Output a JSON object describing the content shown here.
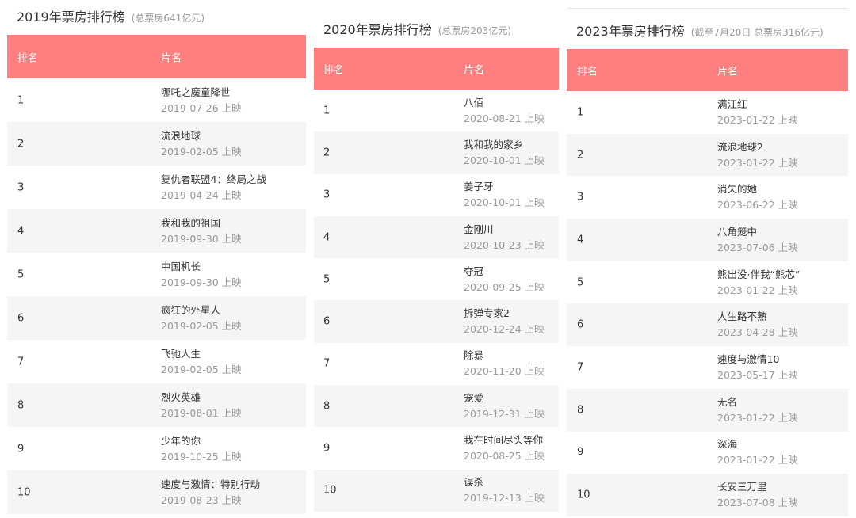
{
  "header_color": "#ff7f7f",
  "columns": {
    "rank": "排名",
    "film": "片名"
  },
  "release_suffix": "上映",
  "panels": [
    {
      "title": "2019年票房排行榜",
      "subtitle": "(总票房641亿元)",
      "rows": [
        {
          "rank": "1",
          "name": "哪吒之魔童降世",
          "date": "2019-07-26 上映"
        },
        {
          "rank": "2",
          "name": "流浪地球",
          "date": "2019-02-05 上映"
        },
        {
          "rank": "3",
          "name": "复仇者联盟4：终局之战",
          "date": "2019-04-24 上映"
        },
        {
          "rank": "4",
          "name": "我和我的祖国",
          "date": "2019-09-30 上映"
        },
        {
          "rank": "5",
          "name": "中国机长",
          "date": "2019-09-30 上映"
        },
        {
          "rank": "6",
          "name": "疯狂的外星人",
          "date": "2019-02-05 上映"
        },
        {
          "rank": "7",
          "name": "飞驰人生",
          "date": "2019-02-05 上映"
        },
        {
          "rank": "8",
          "name": "烈火英雄",
          "date": "2019-08-01 上映"
        },
        {
          "rank": "9",
          "name": "少年的你",
          "date": "2019-10-25 上映"
        },
        {
          "rank": "10",
          "name": "速度与激情：特别行动",
          "date": "2019-08-23 上映"
        }
      ]
    },
    {
      "title": "2020年票房排行榜",
      "subtitle": "(总票房203亿元)",
      "rows": [
        {
          "rank": "1",
          "name": "八佰",
          "date": "2020-08-21 上映"
        },
        {
          "rank": "2",
          "name": "我和我的家乡",
          "date": "2020-10-01 上映"
        },
        {
          "rank": "3",
          "name": "姜子牙",
          "date": "2020-10-01 上映"
        },
        {
          "rank": "4",
          "name": "金刚川",
          "date": "2020-10-23 上映"
        },
        {
          "rank": "5",
          "name": "夺冠",
          "date": "2020-09-25 上映"
        },
        {
          "rank": "6",
          "name": "拆弹专家2",
          "date": "2020-12-24 上映"
        },
        {
          "rank": "7",
          "name": "除暴",
          "date": "2020-11-20 上映"
        },
        {
          "rank": "8",
          "name": "宠爱",
          "date": "2019-12-31 上映"
        },
        {
          "rank": "9",
          "name": "我在时间尽头等你",
          "date": "2020-08-25 上映"
        },
        {
          "rank": "10",
          "name": "误杀",
          "date": "2019-12-13 上映"
        }
      ]
    },
    {
      "title": "2023年票房排行榜",
      "subtitle": "(截至7月20日 总票房316亿元)",
      "rows": [
        {
          "rank": "1",
          "name": "满江红",
          "date": "2023-01-22 上映"
        },
        {
          "rank": "2",
          "name": "流浪地球2",
          "date": "2023-01-22 上映"
        },
        {
          "rank": "3",
          "name": "消失的她",
          "date": "2023-06-22 上映"
        },
        {
          "rank": "4",
          "name": "八角笼中",
          "date": "2023-07-06 上映"
        },
        {
          "rank": "5",
          "name": "熊出没·伴我“熊芯”",
          "date": "2023-01-22 上映"
        },
        {
          "rank": "6",
          "name": "人生路不熟",
          "date": "2023-04-28 上映"
        },
        {
          "rank": "7",
          "name": "速度与激情10",
          "date": "2023-05-17 上映"
        },
        {
          "rank": "8",
          "name": "无名",
          "date": "2023-01-22 上映"
        },
        {
          "rank": "9",
          "name": "深海",
          "date": "2023-01-22 上映"
        },
        {
          "rank": "10",
          "name": "长安三万里",
          "date": "2023-07-08 上映"
        }
      ]
    }
  ]
}
